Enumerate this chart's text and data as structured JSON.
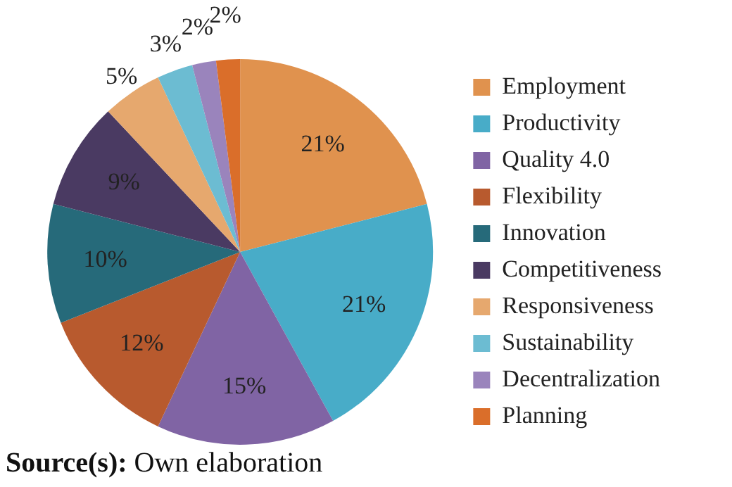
{
  "chart_data": {
    "type": "pie",
    "categories": [
      "Employment",
      "Productivity",
      "Quality 4.0",
      "Flexibility",
      "Innovation",
      "Competitiveness",
      "Responsiveness",
      "Sustainability",
      "Decentralization",
      "Planning"
    ],
    "values": [
      21,
      21,
      15,
      12,
      10,
      9,
      5,
      3,
      2,
      2
    ],
    "value_labels": [
      "21%",
      "21%",
      "15%",
      "12%",
      "10%",
      "9%",
      "5%",
      "3%",
      "2%",
      "2%"
    ],
    "colors": [
      "#e0924e",
      "#48acc8",
      "#8064a4",
      "#b85a2e",
      "#266a7a",
      "#4a3a62",
      "#e6a86e",
      "#6cbcd2",
      "#9a84bc",
      "#da6e2a"
    ],
    "legend": "right",
    "annotations": [
      "Source(s): Own elaboration"
    ]
  }
}
